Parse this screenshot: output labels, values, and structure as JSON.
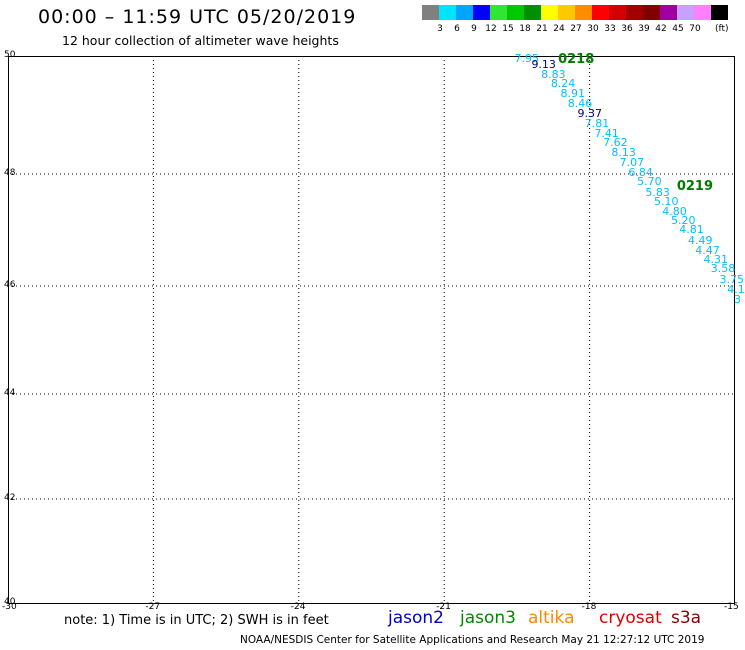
{
  "title": "00:00 – 11:59 UTC 05/20/2019",
  "subtitle": "12 hour collection of altimeter wave heights",
  "color_scale": {
    "colors": [
      "#808080",
      "#00e5ff",
      "#00a5ff",
      "#0000ff",
      "#33e533",
      "#00c800",
      "#008f00",
      "#ffff00",
      "#ffc800",
      "#ff8c00",
      "#ff0000",
      "#d20000",
      "#a00000",
      "#800000",
      "#a000a0",
      "#c8a0ff",
      "#ff80ff",
      "#000000"
    ],
    "labels": [
      "3",
      "6",
      "9",
      "12",
      "15",
      "18",
      "21",
      "24",
      "27",
      "30",
      "33",
      "36",
      "39",
      "42",
      "45",
      "70"
    ],
    "unit": "(ft)"
  },
  "axes": {
    "lon_labels": [
      "-30",
      "-27",
      "-24",
      "-21",
      "-18",
      "-15"
    ],
    "lat_labels": [
      "50",
      "48",
      "46",
      "44",
      "42",
      "40"
    ]
  },
  "track_points": [
    {
      "lon": -19.55,
      "lat": 49.95,
      "value": "7.95",
      "color": "#00bfff"
    },
    {
      "lon": -19.2,
      "lat": 49.85,
      "value": "9.13",
      "color": "#000080"
    },
    {
      "lon": -19.0,
      "lat": 49.68,
      "value": "8.83",
      "color": "#00bfff"
    },
    {
      "lon": -18.8,
      "lat": 49.52,
      "value": "8.24",
      "color": "#00bfff"
    },
    {
      "lon": -18.6,
      "lat": 49.35,
      "value": "8.91",
      "color": "#00bfff"
    },
    {
      "lon": -18.45,
      "lat": 49.18,
      "value": "8.46",
      "color": "#00bfff"
    },
    {
      "lon": -18.25,
      "lat": 49.02,
      "value": "9.37",
      "color": "#000080"
    },
    {
      "lon": -18.1,
      "lat": 48.85,
      "value": "7.81",
      "color": "#00bfff"
    },
    {
      "lon": -17.9,
      "lat": 48.68,
      "value": "7.41",
      "color": "#00bfff"
    },
    {
      "lon": -17.72,
      "lat": 48.52,
      "value": "7.62",
      "color": "#00bfff"
    },
    {
      "lon": -17.55,
      "lat": 48.35,
      "value": "8.13",
      "color": "#00bfff"
    },
    {
      "lon": -17.38,
      "lat": 48.19,
      "value": "7.07",
      "color": "#00bfff"
    },
    {
      "lon": -17.2,
      "lat": 48.02,
      "value": "6.84",
      "color": "#00bfff"
    },
    {
      "lon": -17.02,
      "lat": 47.86,
      "value": "5.70",
      "color": "#00bfff"
    },
    {
      "lon": -16.85,
      "lat": 47.66,
      "value": "5.83",
      "color": "#00bfff"
    },
    {
      "lon": -16.67,
      "lat": 47.5,
      "value": "5.10",
      "color": "#00bfff"
    },
    {
      "lon": -16.5,
      "lat": 47.33,
      "value": "4.80",
      "color": "#00bfff"
    },
    {
      "lon": -16.32,
      "lat": 47.16,
      "value": "5.20",
      "color": "#00bfff"
    },
    {
      "lon": -16.15,
      "lat": 47.0,
      "value": "4.81",
      "color": "#00bfff"
    },
    {
      "lon": -15.97,
      "lat": 46.8,
      "value": "4.49",
      "color": "#00bfff"
    },
    {
      "lon": -15.82,
      "lat": 46.63,
      "value": "4.47",
      "color": "#00bfff"
    },
    {
      "lon": -15.65,
      "lat": 46.47,
      "value": "4.31",
      "color": "#00bfff"
    },
    {
      "lon": -15.5,
      "lat": 46.3,
      "value": "3.58",
      "color": "#00bfff"
    },
    {
      "lon": -15.32,
      "lat": 46.1,
      "value": "3.75",
      "color": "#00bfff"
    },
    {
      "lon": -15.16,
      "lat": 45.92,
      "value": "4.1",
      "color": "#00bfff"
    },
    {
      "lon": -15.02,
      "lat": 45.75,
      "value": "3",
      "color": "#00bfff"
    }
  ],
  "time_labels": [
    {
      "lon": -18.65,
      "lat": 49.95,
      "text": "0218"
    },
    {
      "lon": -16.2,
      "lat": 47.78,
      "text": "0219"
    }
  ],
  "note": "note: 1) Time is in UTC; 2) SWH is in feet",
  "satellites": [
    {
      "name": "jason2",
      "color": "#0000cc"
    },
    {
      "name": "jason3",
      "color": "#008800"
    },
    {
      "name": "altika",
      "color": "#ff8800"
    },
    {
      "name": "cryosat",
      "color": "#dd0000"
    },
    {
      "name": "s3a",
      "color": "#880000"
    }
  ],
  "credit": "NOAA/NESDIS Center for Satellite Applications and Research     May 21 12:27:12 UTC 2019"
}
